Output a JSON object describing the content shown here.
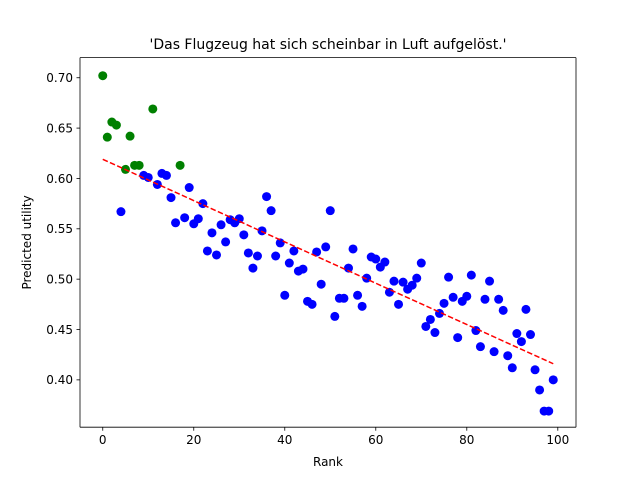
{
  "chart_data": {
    "type": "scatter",
    "title": "'Das Flugzeug hat sich scheinbar in Luft aufgelöst.'",
    "xlabel": "Rank",
    "ylabel": "Predicted utility",
    "xlim": [
      -5,
      104
    ],
    "ylim": [
      0.353,
      0.72
    ],
    "xticks": [
      0,
      20,
      40,
      60,
      80,
      100
    ],
    "xtick_labels": [
      "0",
      "20",
      "40",
      "60",
      "80",
      "100"
    ],
    "yticks": [
      0.4,
      0.45,
      0.5,
      0.55,
      0.6,
      0.65,
      0.7
    ],
    "ytick_labels": [
      "0.40",
      "0.45",
      "0.50",
      "0.55",
      "0.60",
      "0.65",
      "0.70"
    ],
    "grid": false,
    "series": [
      {
        "color": "#008000",
        "marker": "circle",
        "x": [
          0,
          1,
          2,
          3,
          5,
          6,
          7,
          8,
          11,
          17
        ],
        "y": [
          0.702,
          0.641,
          0.656,
          0.653,
          0.609,
          0.642,
          0.613,
          0.613,
          0.669,
          0.613
        ]
      },
      {
        "color": "#0000ff",
        "marker": "circle",
        "x": [
          4,
          9,
          10,
          12,
          13,
          14,
          15,
          16,
          18,
          19,
          20,
          21,
          22,
          23,
          24,
          25,
          26,
          27,
          28,
          29,
          30,
          31,
          32,
          33,
          34,
          35,
          36,
          37,
          38,
          39,
          40,
          41,
          42,
          43,
          44,
          45,
          46,
          47,
          48,
          49,
          50,
          51,
          52,
          53,
          54,
          55,
          56,
          57,
          58,
          59,
          60,
          61,
          62,
          63,
          64,
          65,
          66,
          67,
          68,
          69,
          70,
          71,
          72,
          73,
          74,
          75,
          76,
          77,
          78,
          79,
          80,
          81,
          82,
          83,
          84,
          85,
          86,
          87,
          88,
          89,
          90,
          91,
          92,
          93,
          94,
          95,
          96,
          97,
          98,
          99
        ],
        "y": [
          0.567,
          0.603,
          0.601,
          0.594,
          0.605,
          0.603,
          0.581,
          0.556,
          0.561,
          0.591,
          0.555,
          0.56,
          0.575,
          0.528,
          0.546,
          0.524,
          0.554,
          0.537,
          0.559,
          0.556,
          0.56,
          0.544,
          0.526,
          0.511,
          0.523,
          0.548,
          0.582,
          0.568,
          0.523,
          0.536,
          0.484,
          0.516,
          0.528,
          0.508,
          0.51,
          0.478,
          0.475,
          0.527,
          0.495,
          0.532,
          0.568,
          0.463,
          0.481,
          0.481,
          0.511,
          0.53,
          0.484,
          0.473,
          0.501,
          0.522,
          0.52,
          0.512,
          0.517,
          0.487,
          0.498,
          0.475,
          0.497,
          0.49,
          0.494,
          0.501,
          0.516,
          0.453,
          0.46,
          0.447,
          0.466,
          0.476,
          0.502,
          0.482,
          0.442,
          0.478,
          0.483,
          0.504,
          0.449,
          0.433,
          0.48,
          0.498,
          0.428,
          0.48,
          0.469,
          0.424,
          0.412,
          0.446,
          0.438,
          0.47,
          0.445,
          0.41,
          0.39,
          0.369,
          0.369,
          0.4
        ]
      },
      {
        "type": "line",
        "style": "dashed",
        "color": "#ff0000",
        "x": [
          0,
          99
        ],
        "y": [
          0.619,
          0.416
        ]
      }
    ]
  }
}
